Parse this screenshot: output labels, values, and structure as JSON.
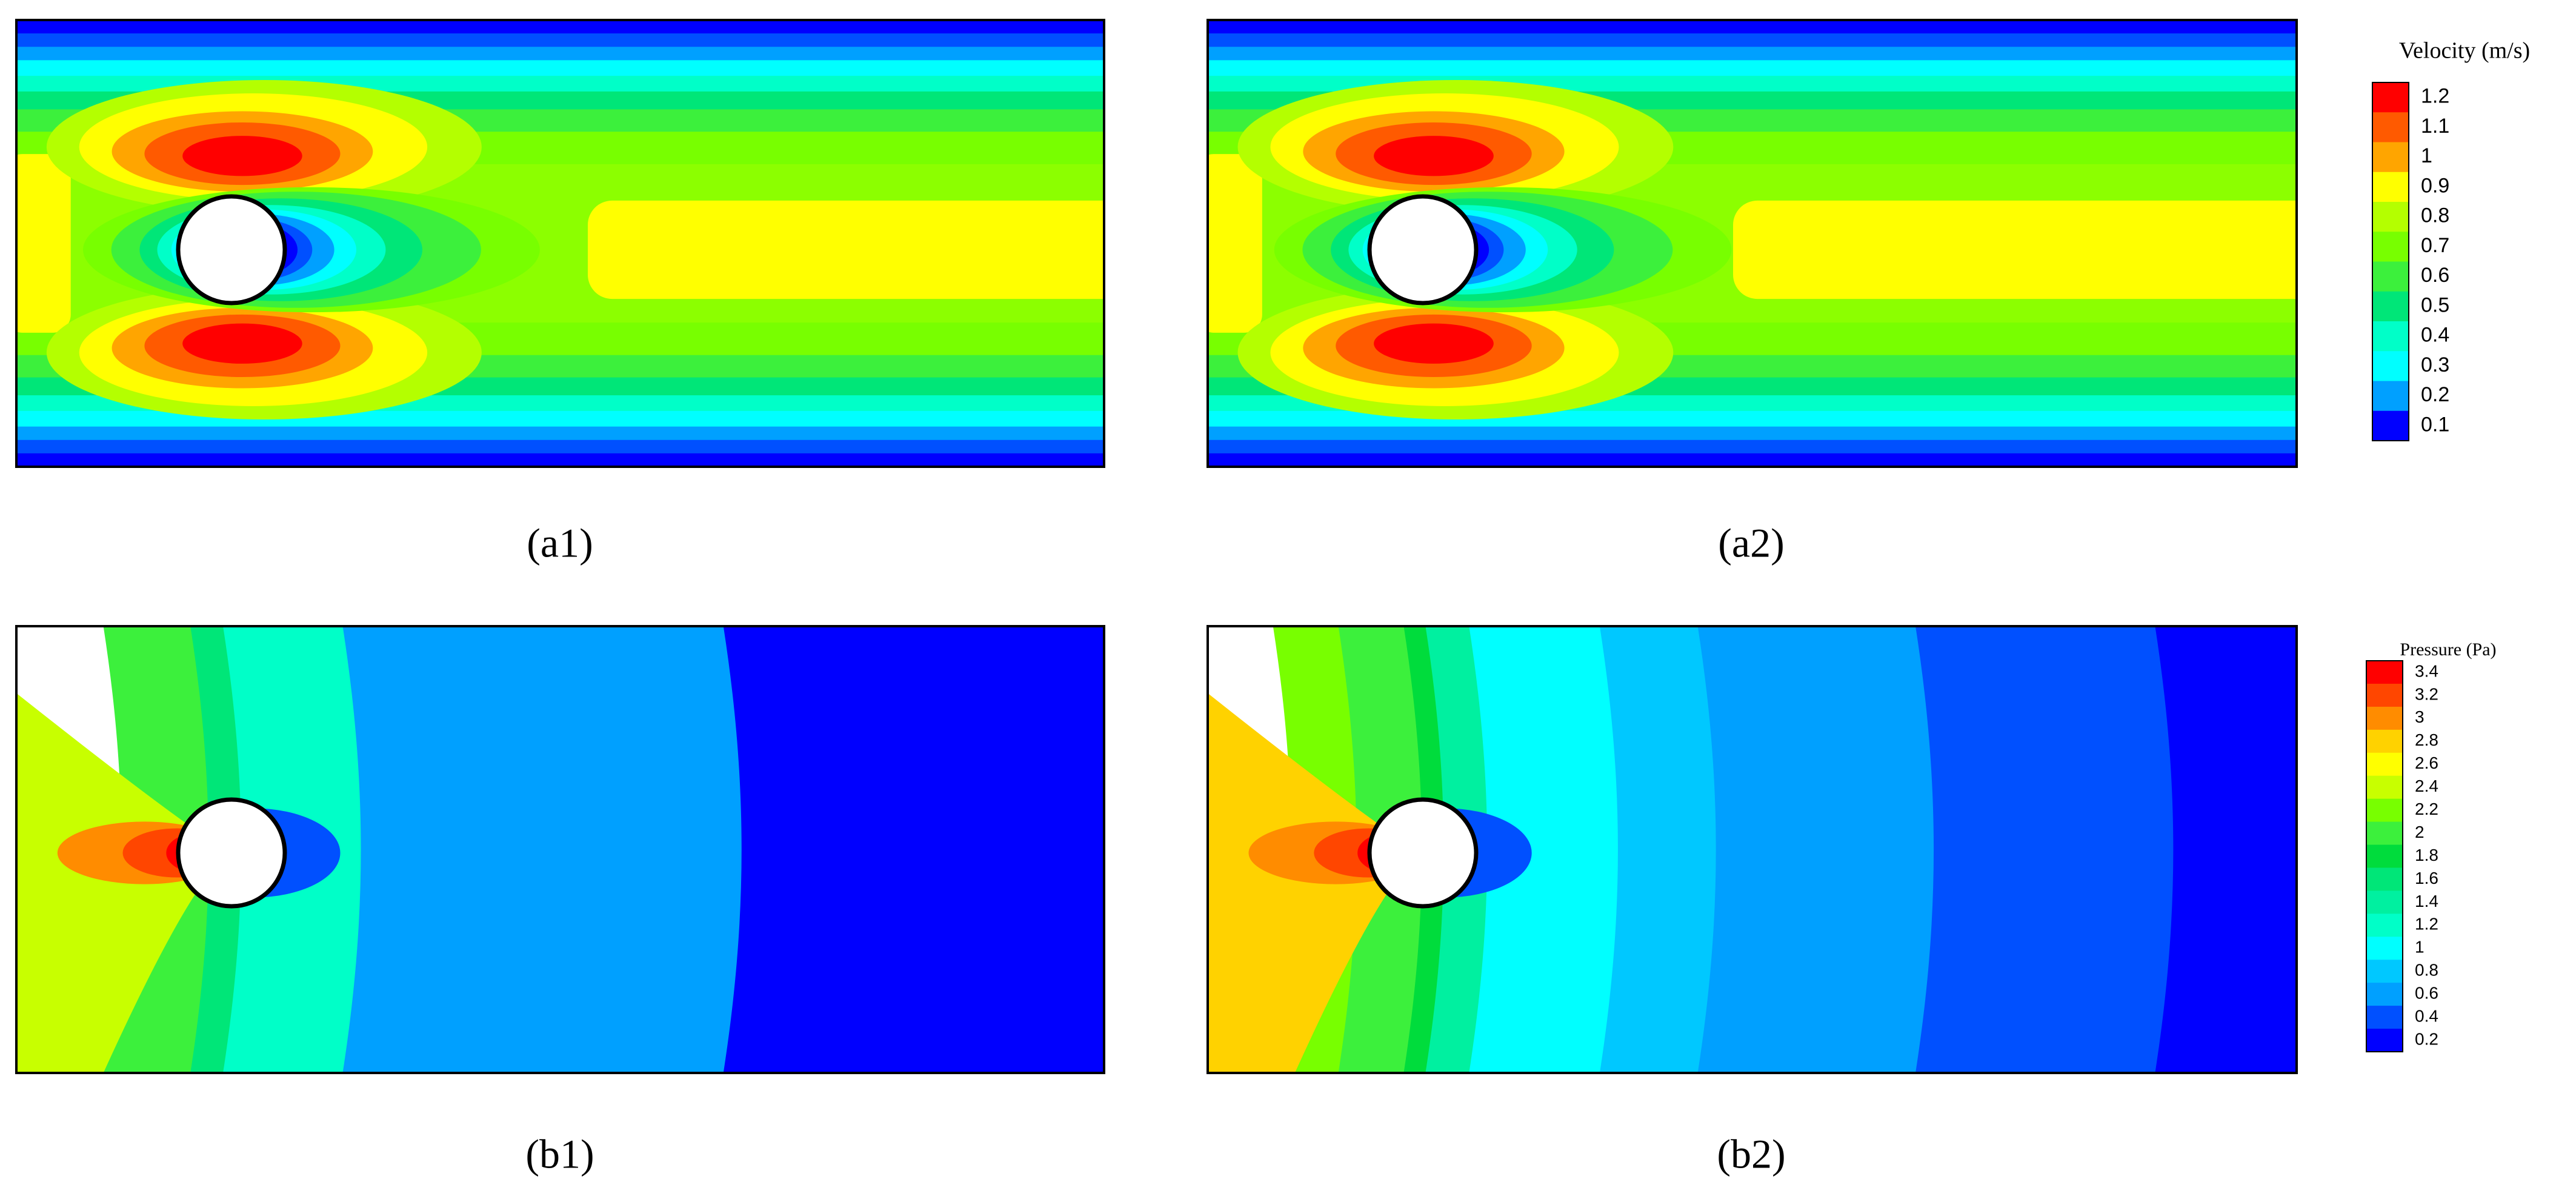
{
  "panels": [
    {
      "label": "(a1)"
    },
    {
      "label": "(a2)"
    },
    {
      "label": "(b1)"
    },
    {
      "label": "(b2)"
    }
  ],
  "velocity_legend": {
    "title": "Velocity (m/s)",
    "ticks": [
      "1.2",
      "1.1",
      "1",
      "0.9",
      "0.8",
      "0.7",
      "0.6",
      "0.5",
      "0.4",
      "0.3",
      "0.2",
      "0.1"
    ],
    "colors": [
      "#ff0000",
      "#ff5a00",
      "#ffa500",
      "#ffff00",
      "#b4ff00",
      "#78ff00",
      "#3cf03c",
      "#00e678",
      "#00ffc8",
      "#00ffff",
      "#00a0ff",
      "#0000ff"
    ]
  },
  "pressure_legend": {
    "title": "Pressure (Pa)",
    "ticks": [
      "3.4",
      "3.2",
      "3",
      "2.8",
      "2.6",
      "2.4",
      "2.2",
      "2",
      "1.8",
      "1.6",
      "1.4",
      "1.2",
      "1",
      "0.8",
      "0.6",
      "0.4",
      "0.2"
    ],
    "colors": [
      "#ff0000",
      "#ff4600",
      "#ff8c00",
      "#ffd200",
      "#ffff00",
      "#c8ff00",
      "#78ff00",
      "#3cf03c",
      "#00dc3c",
      "#00e678",
      "#00f0a0",
      "#00ffc8",
      "#00ffff",
      "#00c8ff",
      "#00a0ff",
      "#0050ff",
      "#0000ff"
    ]
  }
}
